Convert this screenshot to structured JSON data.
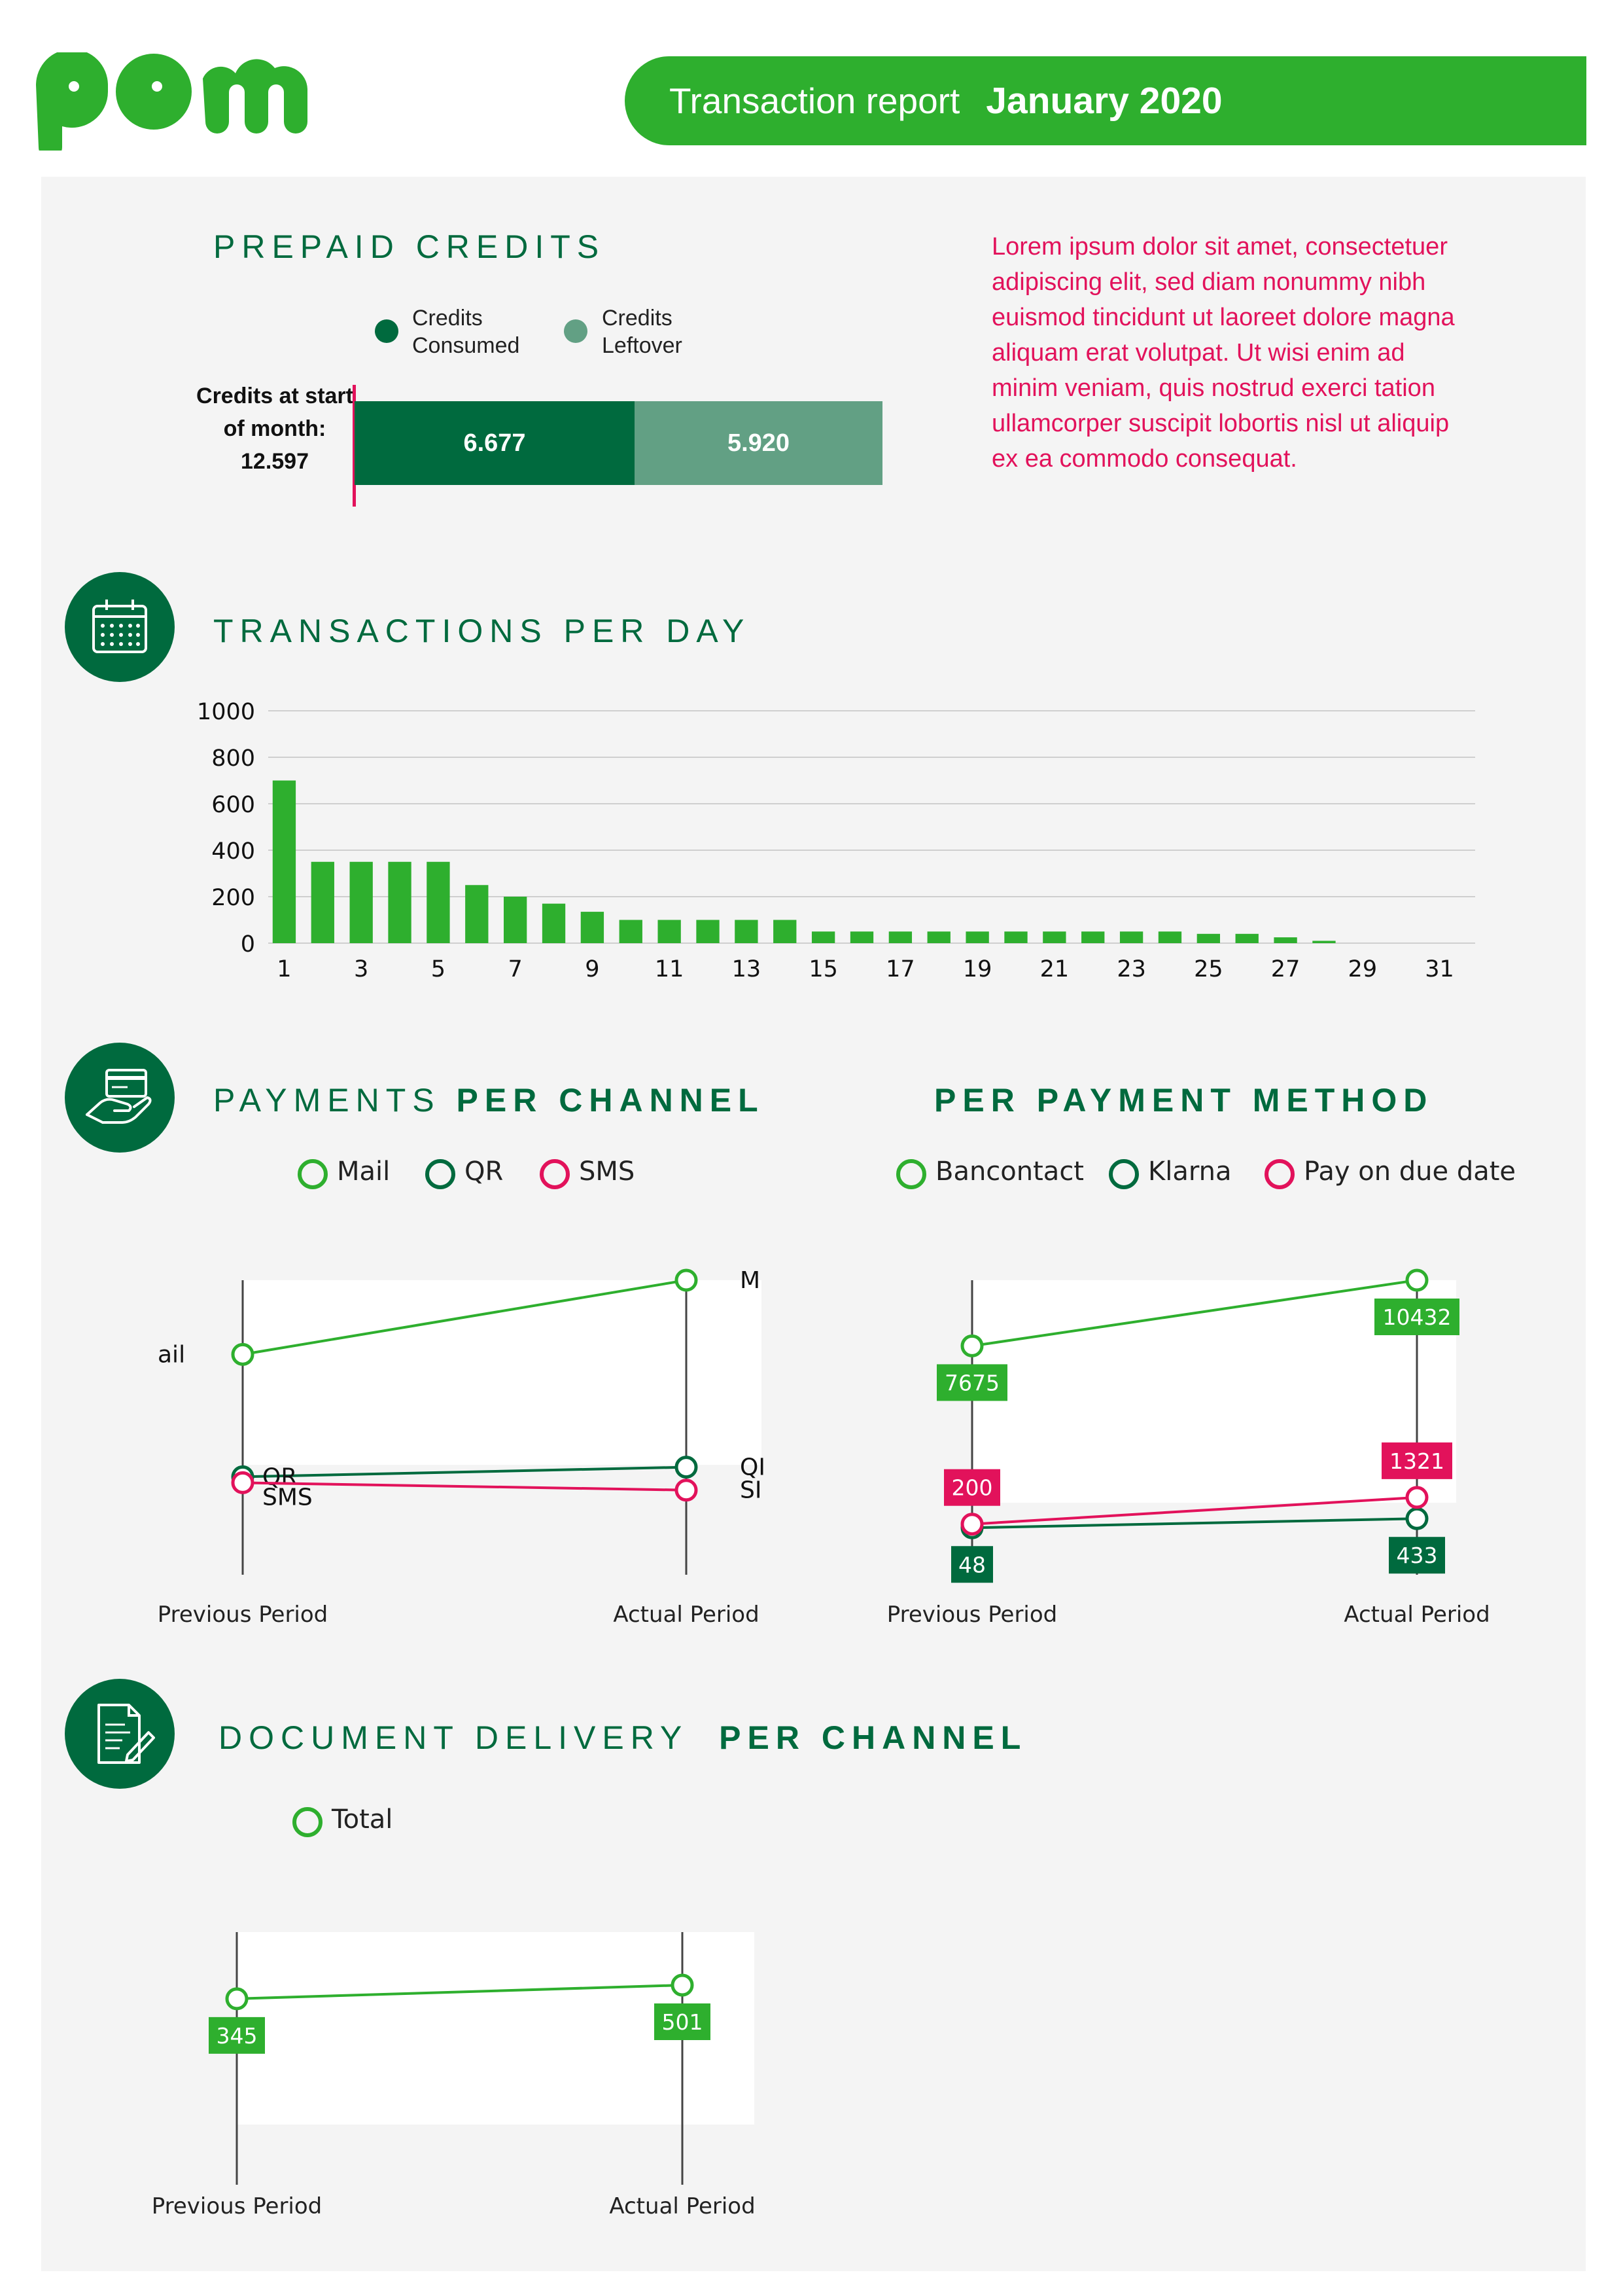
{
  "header": {
    "report_title": "Transaction report",
    "report_period": "January 2020"
  },
  "colors": {
    "brand_green": "#2eaf2e",
    "dark_green": "#006a3e",
    "mid_green": "#62a084",
    "accent_pink": "#e2125b"
  },
  "prepaid": {
    "title": "PREPAID CREDITS",
    "legend_consumed": "Credits Consumed",
    "legend_leftover": "Credits Leftover",
    "start_label": "Credits at start of month:",
    "start_value": "12.597",
    "consumed_value": "6.677",
    "leftover_value": "5.920"
  },
  "lorem": "Lorem ipsum dolor sit amet, consectetuer adipiscing elit, sed diam nonummy nibh euismod tincidunt ut laoreet dolore magna aliquam erat volutpat. Ut wisi enim ad minim veniam, quis nostrud exerci tation ullamcorper suscipit lobortis nisl ut aliquip ex ea commodo consequat.",
  "sections": {
    "transactions_title": "TRANSACTIONS PER DAY",
    "payments_title_a": "PAYMENTS",
    "payments_title_b": "PER CHANNEL",
    "method_title": "PER PAYMENT METHOD",
    "delivery_title_a": "DOCUMENT DELIVERY",
    "delivery_title_b": "PER CHANNEL"
  },
  "icons": {
    "calendar": "calendar-icon",
    "payment": "hand-card-icon",
    "document": "document-pen-icon"
  },
  "chart_data": [
    {
      "type": "bar",
      "x": [
        1,
        2,
        3,
        4,
        5,
        6,
        7,
        8,
        9,
        10,
        11,
        12,
        13,
        14,
        15,
        16,
        17,
        18,
        19,
        20,
        21,
        22,
        23,
        24,
        25,
        26,
        27,
        28,
        29,
        30,
        31
      ],
      "values": [
        700,
        350,
        350,
        350,
        350,
        250,
        200,
        170,
        135,
        100,
        100,
        100,
        100,
        100,
        50,
        50,
        50,
        50,
        50,
        50,
        50,
        50,
        50,
        50,
        40,
        40,
        25,
        10,
        0,
        0,
        0
      ],
      "x_tick_labels": [
        "1",
        "3",
        "5",
        "7",
        "9",
        "11",
        "13",
        "15",
        "17",
        "19",
        "21",
        "23",
        "25",
        "27",
        "29",
        "31"
      ],
      "y_ticks": [
        0,
        200,
        400,
        600,
        800,
        1000
      ],
      "ylim": [
        0,
        1000
      ],
      "grid": true,
      "color": "#2eaf2e"
    },
    {
      "type": "line",
      "categories": [
        "Previous Period",
        "Actual Period"
      ],
      "series": [
        {
          "name": "Mail",
          "values": [
            1000,
            1500
          ],
          "color": "#2eaf2e",
          "label_prev": "ail",
          "label_act": "M"
        },
        {
          "name": "QR",
          "values": [
            175,
            240
          ],
          "color": "#006a3e",
          "label_prev": "QR",
          "label_act": "QI"
        },
        {
          "name": "SMS",
          "values": [
            135,
            85
          ],
          "color": "#e2125b",
          "label_prev": "SMS",
          "label_act": "SI"
        }
      ],
      "ylim": [
        0,
        1500
      ]
    },
    {
      "type": "line",
      "categories": [
        "Previous Period",
        "Actual Period"
      ],
      "series": [
        {
          "name": "Bancontact",
          "values": [
            7675,
            10432
          ],
          "color": "#2eaf2e"
        },
        {
          "name": "Klarna",
          "values": [
            48,
            433
          ],
          "color": "#006a3e"
        },
        {
          "name": "Pay on due date",
          "values": [
            200,
            1321
          ],
          "color": "#e2125b"
        }
      ],
      "ylim": [
        0,
        10432
      ]
    },
    {
      "type": "line",
      "categories": [
        "Previous Period",
        "Actual Period"
      ],
      "series": [
        {
          "name": "Total",
          "values": [
            345,
            501
          ],
          "color": "#2eaf2e"
        }
      ],
      "ylim": [
        0,
        501
      ]
    }
  ]
}
